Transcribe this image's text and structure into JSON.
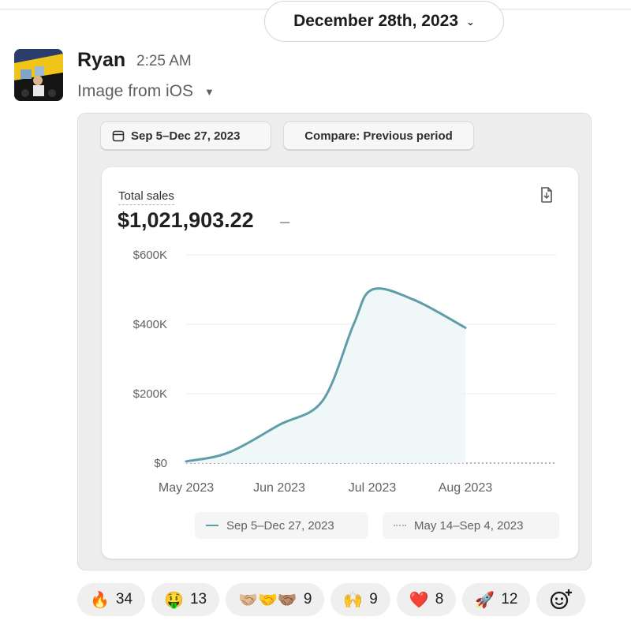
{
  "divider": {
    "date": "December 28th, 2023"
  },
  "message": {
    "author": "Ryan",
    "time": "2:25 AM",
    "file_label": "Image from iOS"
  },
  "report": {
    "date_range_chip": "Sep 5–Dec 27, 2023",
    "compare_chip": "Compare: Previous period",
    "metric_label": "Total sales",
    "metric_value": "$1,021,903.22",
    "metric_change": "–",
    "legend": [
      "Sep 5–Dec 27, 2023",
      "May 14–Sep 4, 2023"
    ],
    "colors": {
      "series": "#5f9ea9",
      "fill": "#eef6f8",
      "grid": "#ececec"
    }
  },
  "chart_data": {
    "type": "area",
    "x_ticks": [
      "May 2023",
      "Jun 2023",
      "Jul 2023",
      "Aug 2023"
    ],
    "y_ticks": [
      "$0",
      "$200K",
      "$400K",
      "$600K"
    ],
    "ylim": [
      0,
      600000
    ],
    "grid": true,
    "legend_position": "bottom",
    "series": [
      {
        "name": "Sep 5–Dec 27, 2023",
        "points": [
          [
            "May 2023",
            5000
          ],
          [
            "2023-05-15",
            30000
          ],
          [
            "Jun 2023",
            110000
          ],
          [
            "2023-06-15",
            180000
          ],
          [
            "2023-06-25",
            400000
          ],
          [
            "Jul 2023",
            500000
          ],
          [
            "2023-07-15",
            470000
          ],
          [
            "Aug 2023",
            390000
          ]
        ]
      },
      {
        "name": "May 14–Sep 4, 2023",
        "points": [
          [
            "May 2023",
            0
          ],
          [
            "Aug 2023",
            0
          ]
        ]
      }
    ]
  },
  "reactions": [
    {
      "emoji": "🔥",
      "icon": "fire-icon",
      "count": "34"
    },
    {
      "emoji": "🤑",
      "icon": "money-mouth-face-icon",
      "count": "13"
    },
    {
      "emoji": "🤝🏼🤝🤝🏽",
      "icon": "handshake-icon",
      "count": "9"
    },
    {
      "emoji": "🙌",
      "icon": "raising-hands-icon",
      "count": "9"
    },
    {
      "emoji": "❤️",
      "icon": "heart-icon",
      "count": "8"
    },
    {
      "emoji": "🚀",
      "icon": "rocket-icon",
      "count": "12"
    }
  ]
}
